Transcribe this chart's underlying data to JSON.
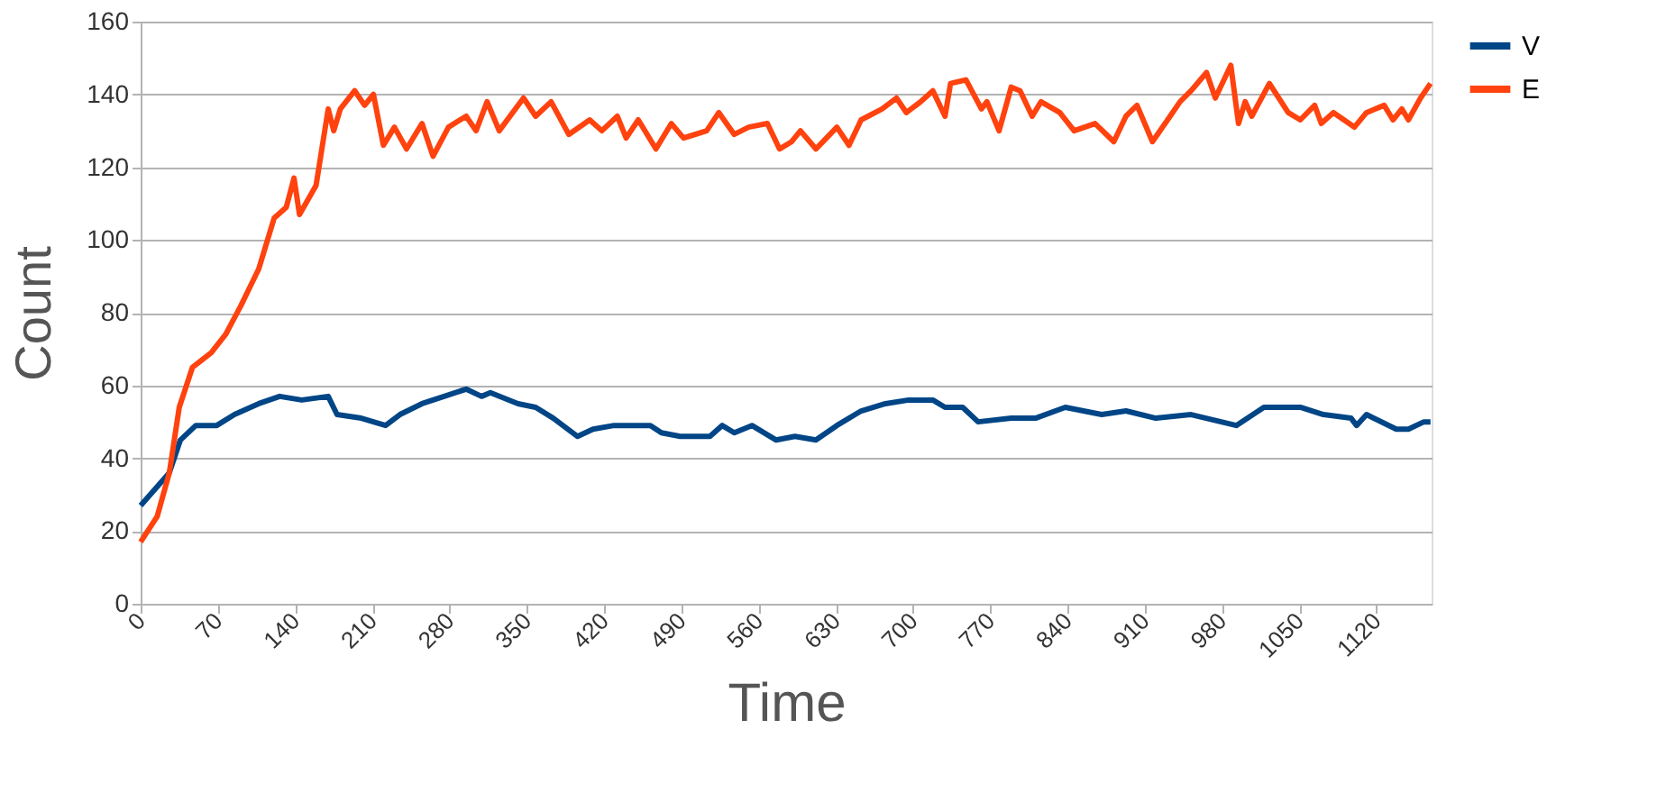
{
  "chart_data": {
    "type": "line",
    "xlabel": "Time",
    "ylabel": "Count",
    "xlim": [
      0,
      1170
    ],
    "xticks": [
      0,
      70,
      140,
      210,
      280,
      350,
      420,
      490,
      560,
      630,
      700,
      770,
      840,
      910,
      980,
      1050,
      1120
    ],
    "ylim": [
      0,
      160
    ],
    "yticks": [
      0,
      20,
      40,
      60,
      80,
      100,
      120,
      140,
      160
    ],
    "grid": "y",
    "legend": "right",
    "marker": "none",
    "line_style": "solid",
    "series": [
      {
        "name": "V",
        "color": "#004586",
        "x": [
          0,
          26,
          36,
          50,
          69,
          85,
          107,
          126,
          146,
          170,
          178,
          200,
          222,
          235,
          255,
          275,
          295,
          309,
          317,
          342,
          358,
          374,
          396,
          410,
          429,
          462,
          472,
          489,
          516,
          527,
          538,
          554,
          576,
          593,
          612,
          631,
          653,
          675,
          696,
          718,
          729,
          745,
          759,
          789,
          811,
          838,
          871,
          893,
          920,
          952,
          993,
          1018,
          1051,
          1072,
          1097,
          1102,
          1111,
          1138,
          1149,
          1163,
          1169
        ],
        "values": [
          27,
          36,
          45,
          49,
          49,
          52,
          55,
          57,
          56,
          57,
          52,
          51,
          49,
          52,
          55,
          57,
          59,
          57,
          58,
          55,
          54,
          51,
          46,
          48,
          49,
          49,
          47,
          46,
          46,
          49,
          47,
          49,
          45,
          46,
          45,
          49,
          53,
          55,
          56,
          56,
          54,
          54,
          50,
          51,
          51,
          54,
          52,
          53,
          51,
          52,
          49,
          54,
          54,
          52,
          51,
          49,
          52,
          48,
          48,
          50,
          50
        ]
      },
      {
        "name": "E",
        "color": "#ff420e",
        "x": [
          0,
          15,
          26,
          35,
          47,
          64,
          77,
          91,
          107,
          121,
          132,
          139,
          144,
          159,
          170,
          175,
          181,
          194,
          203,
          211,
          220,
          230,
          241,
          255,
          265,
          279,
          295,
          304,
          314,
          325,
          347,
          358,
          372,
          388,
          407,
          418,
          432,
          440,
          451,
          467,
          481,
          492,
          513,
          524,
          538,
          551,
          568,
          579,
          590,
          598,
          612,
          631,
          642,
          653,
          672,
          685,
          694,
          707,
          718,
          729,
          734,
          748,
          762,
          767,
          778,
          789,
          797,
          808,
          816,
          833,
          846,
          865,
          882,
          893,
          903,
          917,
          933,
          942,
          952,
          966,
          974,
          988,
          995,
          1001,
          1007,
          1023,
          1040,
          1051,
          1064,
          1070,
          1081,
          1100,
          1111,
          1127,
          1135,
          1143,
          1149,
          1160,
          1169
        ],
        "values": [
          17,
          24,
          36,
          54,
          65,
          69,
          74,
          82,
          92,
          106,
          109,
          117,
          107,
          115,
          136,
          130,
          136,
          141,
          137,
          140,
          126,
          131,
          125,
          132,
          123,
          131,
          134,
          130,
          138,
          130,
          139,
          134,
          138,
          129,
          133,
          130,
          134,
          128,
          133,
          125,
          132,
          128,
          130,
          135,
          129,
          131,
          132,
          125,
          127,
          130,
          125,
          131,
          126,
          133,
          136,
          139,
          135,
          138,
          141,
          134,
          143,
          144,
          136,
          138,
          130,
          142,
          141,
          134,
          138,
          135,
          130,
          132,
          127,
          134,
          137,
          127,
          134,
          138,
          141,
          146,
          139,
          148,
          132,
          138,
          134,
          143,
          135,
          133,
          137,
          132,
          135,
          131,
          135,
          137,
          133,
          136,
          133,
          139,
          143
        ]
      }
    ]
  }
}
